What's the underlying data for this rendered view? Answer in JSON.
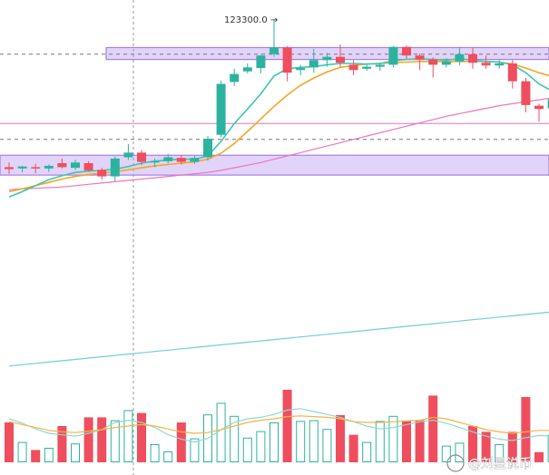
{
  "chart_data": {
    "type": "candlestick",
    "annotations": {
      "peak_label": "123300.0 →"
    },
    "colors": {
      "up": "#2bb3a0",
      "down": "#ef4e5e",
      "zone_fill": "#d7c6f5",
      "zone_stroke": "#a77ee8",
      "ma_fast": "#3cc6b2",
      "ma_medium": "#f5a623",
      "ma_slow": "#ee74bf",
      "ma_long": "#6fcde0",
      "vol_ma_orange": "#f5b445",
      "vol_ma_teal": "#8fd9d0",
      "pink_line": "#e074c0",
      "dashed_line": "#777777",
      "crosshair": "#9a9a9a"
    },
    "zones": [
      {
        "from": 122700,
        "to": 122880,
        "label": "upper zone"
      },
      {
        "from": 120950,
        "to": 121250,
        "label": "lower zone"
      }
    ],
    "horizontal_lines": [
      {
        "y": 121730,
        "style": "solid",
        "color_key": "pink_line"
      },
      {
        "y": 122780,
        "style": "dashed",
        "color_key": "dashed_line"
      },
      {
        "y": 121490,
        "style": "dashed",
        "color_key": "dashed_line"
      }
    ],
    "y_range": [
      117700,
      123600
    ],
    "volume_range": [
      0,
      100
    ],
    "candles": [
      {
        "i": 0,
        "o": 121070,
        "h": 121140,
        "l": 120970,
        "c": 121040,
        "v": 55
      },
      {
        "i": 1,
        "o": 121050,
        "h": 121090,
        "l": 120990,
        "c": 121080,
        "v": 28
      },
      {
        "i": 2,
        "o": 121070,
        "h": 121120,
        "l": 120980,
        "c": 121060,
        "v": 17
      },
      {
        "i": 3,
        "o": 121050,
        "h": 121110,
        "l": 121000,
        "c": 121090,
        "v": 20
      },
      {
        "i": 4,
        "o": 121130,
        "h": 121200,
        "l": 121050,
        "c": 121070,
        "v": 50
      },
      {
        "i": 5,
        "o": 121060,
        "h": 121180,
        "l": 121030,
        "c": 121140,
        "v": 26
      },
      {
        "i": 6,
        "o": 121130,
        "h": 121160,
        "l": 121000,
        "c": 121020,
        "v": 62
      },
      {
        "i": 7,
        "o": 121030,
        "h": 121060,
        "l": 120880,
        "c": 120930,
        "v": 62
      },
      {
        "i": 8,
        "o": 120930,
        "h": 121230,
        "l": 120860,
        "c": 121200,
        "v": 58
      },
      {
        "i": 9,
        "o": 121220,
        "h": 121420,
        "l": 121180,
        "c": 121290,
        "v": 72
      },
      {
        "i": 10,
        "o": 121290,
        "h": 121330,
        "l": 121100,
        "c": 121150,
        "v": 68
      },
      {
        "i": 11,
        "o": 121150,
        "h": 121200,
        "l": 121070,
        "c": 121160,
        "v": 25
      },
      {
        "i": 12,
        "o": 121160,
        "h": 121270,
        "l": 121130,
        "c": 121220,
        "v": 15
      },
      {
        "i": 13,
        "o": 121210,
        "h": 121250,
        "l": 121110,
        "c": 121150,
        "v": 55
      },
      {
        "i": 14,
        "o": 121150,
        "h": 121240,
        "l": 121120,
        "c": 121210,
        "v": 33
      },
      {
        "i": 15,
        "o": 121220,
        "h": 121540,
        "l": 121170,
        "c": 121500,
        "v": 66
      },
      {
        "i": 16,
        "o": 121560,
        "h": 122380,
        "l": 121520,
        "c": 122330,
        "v": 82
      },
      {
        "i": 17,
        "o": 122360,
        "h": 122560,
        "l": 122300,
        "c": 122480,
        "v": 64
      },
      {
        "i": 18,
        "o": 122520,
        "h": 122640,
        "l": 122490,
        "c": 122580,
        "v": 34
      },
      {
        "i": 19,
        "o": 122570,
        "h": 122770,
        "l": 122490,
        "c": 122760,
        "v": 43
      },
      {
        "i": 20,
        "o": 122780,
        "h": 123300,
        "l": 122740,
        "c": 122880,
        "v": 55
      },
      {
        "i": 21,
        "o": 122880,
        "h": 122900,
        "l": 122370,
        "c": 122500,
        "v": 100
      },
      {
        "i": 22,
        "o": 122540,
        "h": 122620,
        "l": 122460,
        "c": 122570,
        "v": 57
      },
      {
        "i": 23,
        "o": 122580,
        "h": 122860,
        "l": 122500,
        "c": 122690,
        "v": 58
      },
      {
        "i": 24,
        "o": 122690,
        "h": 122800,
        "l": 122590,
        "c": 122740,
        "v": 46
      },
      {
        "i": 25,
        "o": 122740,
        "h": 122930,
        "l": 122590,
        "c": 122650,
        "v": 65
      },
      {
        "i": 26,
        "o": 122620,
        "h": 122690,
        "l": 122460,
        "c": 122540,
        "v": 38
      },
      {
        "i": 27,
        "o": 122560,
        "h": 122620,
        "l": 122530,
        "c": 122590,
        "v": 28
      },
      {
        "i": 28,
        "o": 122590,
        "h": 122650,
        "l": 122530,
        "c": 122620,
        "v": 57
      },
      {
        "i": 29,
        "o": 122620,
        "h": 122900,
        "l": 122580,
        "c": 122890,
        "v": 64
      },
      {
        "i": 30,
        "o": 122890,
        "h": 122910,
        "l": 122710,
        "c": 122760,
        "v": 57
      },
      {
        "i": 31,
        "o": 122760,
        "h": 122790,
        "l": 122540,
        "c": 122700,
        "v": 58
      },
      {
        "i": 32,
        "o": 122700,
        "h": 122730,
        "l": 122430,
        "c": 122620,
        "v": 92
      },
      {
        "i": 33,
        "o": 122620,
        "h": 122720,
        "l": 122580,
        "c": 122670,
        "v": 23
      },
      {
        "i": 34,
        "o": 122670,
        "h": 122890,
        "l": 122610,
        "c": 122780,
        "v": 27
      },
      {
        "i": 35,
        "o": 122780,
        "h": 122880,
        "l": 122560,
        "c": 122650,
        "v": 50
      },
      {
        "i": 36,
        "o": 122650,
        "h": 122760,
        "l": 122560,
        "c": 122610,
        "v": 42
      },
      {
        "i": 37,
        "o": 122610,
        "h": 122690,
        "l": 122560,
        "c": 122640,
        "v": 25
      },
      {
        "i": 38,
        "o": 122640,
        "h": 122690,
        "l": 122260,
        "c": 122370,
        "v": 42
      },
      {
        "i": 39,
        "o": 122370,
        "h": 122420,
        "l": 121900,
        "c": 122010,
        "v": 90
      },
      {
        "i": 40,
        "o": 122000,
        "h": 122030,
        "l": 121760,
        "c": 121950,
        "v": 14
      },
      {
        "i": 41,
        "o": 121960,
        "h": 122190,
        "l": 121770,
        "c": 122100,
        "v": 38
      },
      {
        "i": 42,
        "o": 122110,
        "h": 122290,
        "l": 122060,
        "c": 122220,
        "v": 20
      }
    ],
    "ma_fast": [
      120620,
      120700,
      120790,
      120880,
      120940,
      120990,
      121010,
      121020,
      121040,
      121080,
      121130,
      121160,
      121180,
      121190,
      121190,
      121240,
      121460,
      121730,
      121950,
      122180,
      122450,
      122560,
      122580,
      122590,
      122620,
      122640,
      122640,
      122630,
      122640,
      122680,
      122700,
      122710,
      122700,
      122690,
      122710,
      122690,
      122670,
      122660,
      122620,
      122500,
      122330,
      122220,
      122160
    ],
    "ma_medium": [
      120700,
      120740,
      120790,
      120840,
      120890,
      120930,
      120960,
      120980,
      121000,
      121030,
      121060,
      121090,
      121110,
      121130,
      121150,
      121190,
      121280,
      121430,
      121610,
      121800,
      121990,
      122160,
      122310,
      122420,
      122510,
      122580,
      122610,
      122630,
      122640,
      122650,
      122660,
      122670,
      122670,
      122670,
      122670,
      122670,
      122670,
      122660,
      122630,
      122570,
      122500,
      122440,
      122390
    ],
    "ma_slow": [
      120730,
      120740,
      120750,
      120760,
      120770,
      120790,
      120810,
      120830,
      120850,
      120870,
      120890,
      120910,
      120930,
      120950,
      120970,
      120990,
      121020,
      121060,
      121100,
      121140,
      121190,
      121240,
      121290,
      121340,
      121390,
      121440,
      121490,
      121540,
      121590,
      121640,
      121690,
      121740,
      121790,
      121840,
      121880,
      121920,
      121960,
      122000,
      122030,
      122060,
      122090,
      122120,
      122150
    ],
    "ma_long": [
      118060,
      118080,
      118100,
      118120,
      118140,
      118160,
      118180,
      118200,
      118220,
      118240,
      118260,
      118280,
      118300,
      118320,
      118340,
      118360,
      118380,
      118400,
      118420,
      118440,
      118460,
      118480,
      118500,
      118520,
      118540,
      118560,
      118580,
      118600,
      118620,
      118640,
      118660,
      118680,
      118700,
      118720,
      118740,
      118760,
      118780,
      118800,
      118820,
      118840,
      118860,
      118880,
      118900
    ],
    "vol_ma_orange": [
      56,
      52,
      48,
      44,
      42,
      41,
      43,
      45,
      48,
      50,
      52,
      50,
      46,
      42,
      40,
      41,
      45,
      50,
      55,
      58,
      60,
      63,
      64,
      63,
      62,
      60,
      56,
      55,
      55,
      56,
      57,
      58,
      62,
      60,
      55,
      50,
      45,
      42,
      40,
      42,
      44,
      44,
      43
    ],
    "vol_ma_teal": [
      60,
      54,
      46,
      40,
      38,
      36,
      40,
      45,
      55,
      58,
      55,
      48,
      38,
      32,
      28,
      33,
      45,
      55,
      60,
      62,
      66,
      72,
      74,
      70,
      66,
      62,
      56,
      50,
      46,
      48,
      52,
      56,
      58,
      54,
      48,
      42,
      36,
      32,
      30,
      34,
      37,
      36,
      35
    ],
    "watermark_text": "@刘星说币"
  }
}
